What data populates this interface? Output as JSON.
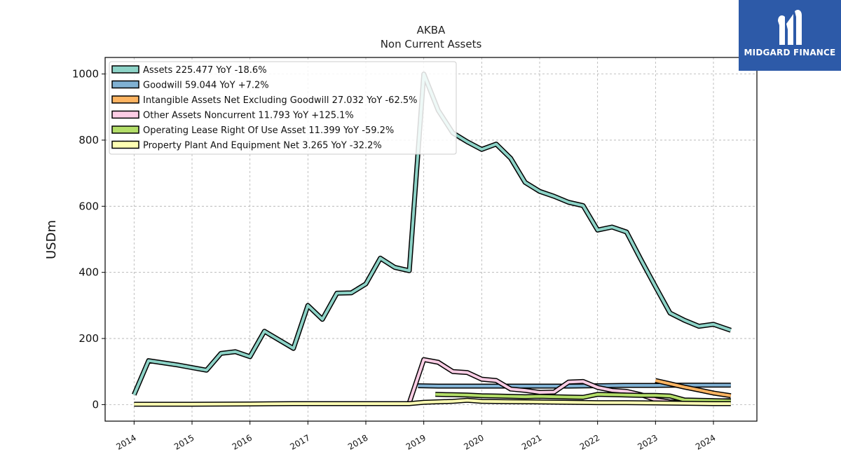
{
  "logo": {
    "text": "MIDGARD FINANCE"
  },
  "chart_data": {
    "type": "line",
    "title": "AKBA",
    "subtitle": "Non Current  Assets",
    "ylabel": "USDm",
    "xlabel": "",
    "xlim": [
      2013.5,
      2024.75
    ],
    "ylim": [
      -50,
      1050
    ],
    "yticks": [
      0,
      200,
      400,
      600,
      800,
      1000
    ],
    "xticks": [
      2014,
      2015,
      2016,
      2017,
      2018,
      2019,
      2020,
      2021,
      2022,
      2023,
      2024
    ],
    "grid": true,
    "legend_position": "top-left",
    "series": [
      {
        "name": "Assets  225.477 YoY -18.6%",
        "color": "#8dd3c7",
        "points": [
          [
            2014.0,
            30
          ],
          [
            2014.25,
            133
          ],
          [
            2014.75,
            120
          ],
          [
            2015.0,
            112
          ],
          [
            2015.25,
            104
          ],
          [
            2015.5,
            155
          ],
          [
            2015.75,
            160
          ],
          [
            2016.0,
            145
          ],
          [
            2016.25,
            222
          ],
          [
            2016.75,
            170
          ],
          [
            2017.0,
            300
          ],
          [
            2017.25,
            258
          ],
          [
            2017.5,
            337
          ],
          [
            2017.75,
            338
          ],
          [
            2018.0,
            365
          ],
          [
            2018.25,
            443
          ],
          [
            2018.5,
            415
          ],
          [
            2018.75,
            405
          ],
          [
            2019.0,
            1000
          ],
          [
            2019.25,
            890
          ],
          [
            2019.5,
            822
          ],
          [
            2019.75,
            795
          ],
          [
            2020.0,
            772
          ],
          [
            2020.25,
            788
          ],
          [
            2020.5,
            745
          ],
          [
            2020.75,
            672
          ],
          [
            2021.0,
            645
          ],
          [
            2021.25,
            630
          ],
          [
            2021.5,
            612
          ],
          [
            2021.75,
            602
          ],
          [
            2022.0,
            528
          ],
          [
            2022.25,
            537
          ],
          [
            2022.5,
            522
          ],
          [
            2022.75,
            438
          ],
          [
            2023.0,
            357
          ],
          [
            2023.25,
            277
          ],
          [
            2023.5,
            255
          ],
          [
            2023.75,
            237
          ],
          [
            2024.0,
            243
          ],
          [
            2024.3,
            225
          ]
        ]
      },
      {
        "name": "Goodwill  59.044 YoY +7.2%",
        "color": "#80b1d3",
        "points": [
          [
            2018.9,
            57
          ],
          [
            2019.25,
            56
          ],
          [
            2019.5,
            56
          ],
          [
            2019.75,
            56
          ],
          [
            2020.0,
            56
          ],
          [
            2020.5,
            56
          ],
          [
            2021.0,
            56
          ],
          [
            2021.5,
            56
          ],
          [
            2022.0,
            57
          ],
          [
            2022.5,
            58
          ],
          [
            2023.0,
            58
          ],
          [
            2023.5,
            59
          ],
          [
            2024.0,
            59
          ],
          [
            2024.3,
            59
          ]
        ]
      },
      {
        "name": "Intangible Assets Net Excluding Goodwill  27.032 YoY -62.5%",
        "color": "#fdb462",
        "points": [
          [
            2023.0,
            73
          ],
          [
            2023.25,
            63
          ],
          [
            2023.5,
            53
          ],
          [
            2023.75,
            44
          ],
          [
            2024.0,
            35
          ],
          [
            2024.3,
            27
          ]
        ]
      },
      {
        "name": "Other Assets Noncurrent  11.793 YoY +125.1%",
        "color": "#fccde5",
        "points": [
          [
            2018.75,
            5
          ],
          [
            2019.0,
            136
          ],
          [
            2019.25,
            128
          ],
          [
            2019.5,
            100
          ],
          [
            2019.75,
            97
          ],
          [
            2020.0,
            77
          ],
          [
            2020.25,
            73
          ],
          [
            2020.5,
            47
          ],
          [
            2020.75,
            43
          ],
          [
            2021.0,
            37
          ],
          [
            2021.25,
            38
          ],
          [
            2021.5,
            68
          ],
          [
            2021.75,
            70
          ],
          [
            2022.0,
            52
          ],
          [
            2022.25,
            43
          ],
          [
            2022.5,
            40
          ],
          [
            2022.75,
            30
          ],
          [
            2023.0,
            15
          ],
          [
            2023.25,
            8
          ],
          [
            2023.5,
            5
          ],
          [
            2023.75,
            10
          ],
          [
            2024.0,
            11
          ],
          [
            2024.3,
            12
          ]
        ]
      },
      {
        "name": "Operating Lease Right Of Use Asset  11.399 YoY -59.2%",
        "color": "#b3de69",
        "points": [
          [
            2019.2,
            31
          ],
          [
            2019.5,
            30
          ],
          [
            2019.75,
            29
          ],
          [
            2020.0,
            27
          ],
          [
            2020.25,
            26
          ],
          [
            2020.5,
            25
          ],
          [
            2020.75,
            24
          ],
          [
            2021.0,
            25
          ],
          [
            2021.25,
            24
          ],
          [
            2021.5,
            23
          ],
          [
            2021.75,
            22
          ],
          [
            2022.0,
            31
          ],
          [
            2022.25,
            30
          ],
          [
            2022.5,
            29
          ],
          [
            2022.75,
            28
          ],
          [
            2023.0,
            28
          ],
          [
            2023.25,
            26
          ],
          [
            2023.5,
            14
          ],
          [
            2023.75,
            13
          ],
          [
            2024.0,
            12
          ],
          [
            2024.3,
            11
          ]
        ]
      },
      {
        "name": "Property Plant And Equipment Net  3.265 YoY -32.2%",
        "color": "#ffffb3",
        "points": [
          [
            2014.0,
            1
          ],
          [
            2015.0,
            1
          ],
          [
            2016.0,
            2
          ],
          [
            2016.75,
            3
          ],
          [
            2017.0,
            3
          ],
          [
            2018.0,
            3
          ],
          [
            2018.75,
            3
          ],
          [
            2019.0,
            7
          ],
          [
            2019.5,
            10
          ],
          [
            2019.75,
            13
          ],
          [
            2020.0,
            10
          ],
          [
            2020.5,
            9
          ],
          [
            2021.0,
            8
          ],
          [
            2021.5,
            7
          ],
          [
            2022.0,
            6
          ],
          [
            2022.5,
            6
          ],
          [
            2023.0,
            5
          ],
          [
            2023.5,
            4
          ],
          [
            2024.0,
            3
          ],
          [
            2024.3,
            3
          ]
        ]
      }
    ]
  }
}
